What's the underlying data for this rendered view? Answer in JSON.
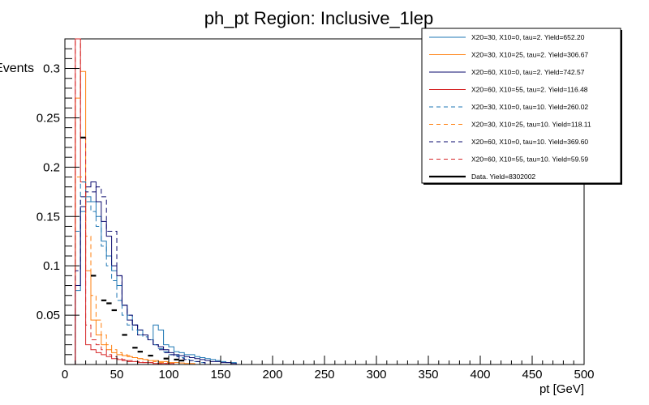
{
  "chart_data": {
    "type": "line",
    "title": "ph_pt Region: Inclusive_1lep",
    "xlabel": "pt [GeV]",
    "ylabel": "Events",
    "xlim": [
      0,
      500
    ],
    "ylim": [
      0,
      0.33
    ],
    "grid": false,
    "legend_position": "top-right",
    "x_ticks": [
      0,
      50,
      100,
      150,
      200,
      250,
      300,
      350,
      400,
      450,
      500
    ],
    "x_tick_labels": [
      "0",
      "50",
      "100",
      "150",
      "200",
      "250",
      "300",
      "350",
      "400",
      "450",
      "500"
    ],
    "y_ticks": [
      0.05,
      0.1,
      0.15,
      0.2,
      0.25,
      0.3
    ],
    "y_tick_labels": [
      "0.05",
      "0.1",
      "0.15",
      "0.2",
      "0.25",
      "0.3"
    ],
    "bin_width": 5,
    "series": [
      {
        "name": "X20=30, X10=0, tau=2. Yield=652.20",
        "color": "#1f77b4",
        "dashed": false,
        "x": [
          5,
          10,
          15,
          20,
          25,
          30,
          35,
          40,
          45,
          50,
          55,
          60,
          65,
          70,
          75,
          80,
          85,
          90,
          95,
          100,
          105,
          110,
          115,
          120,
          125,
          130,
          135,
          140,
          145,
          150,
          155,
          160
        ],
        "y": [
          0.0,
          0.075,
          0.155,
          0.17,
          0.165,
          0.15,
          0.125,
          0.11,
          0.095,
          0.08,
          0.06,
          0.05,
          0.04,
          0.035,
          0.03,
          0.025,
          0.04,
          0.035,
          0.02,
          0.018,
          0.013,
          0.012,
          0.01,
          0.01,
          0.008,
          0.007,
          0.006,
          0.005,
          0.004,
          0.003,
          0.002,
          0.002
        ]
      },
      {
        "name": "X20=30, X10=25, tau=2. Yield=306.67",
        "color": "#ff7f0e",
        "dashed": false,
        "x": [
          5,
          10,
          15,
          20,
          25,
          30,
          35,
          40,
          45,
          50,
          55,
          60,
          65,
          70,
          75,
          80,
          85,
          90,
          95,
          100,
          105,
          110,
          115,
          120
        ],
        "y": [
          0.0,
          0.27,
          0.297,
          0.095,
          0.045,
          0.03,
          0.02,
          0.015,
          0.012,
          0.01,
          0.009,
          0.008,
          0.007,
          0.006,
          0.005,
          0.004,
          0.004,
          0.003,
          0.003,
          0.002,
          0.002,
          0.0015,
          0.001,
          0.001
        ]
      },
      {
        "name": "X20=60, X10=0, tau=2. Yield=742.57",
        "color": "#0a0a6e",
        "dashed": false,
        "x": [
          5,
          10,
          15,
          20,
          25,
          30,
          35,
          40,
          45,
          50,
          55,
          60,
          65,
          70,
          75,
          80,
          85,
          90,
          95,
          100,
          105,
          110,
          115,
          120,
          125,
          130,
          135,
          140,
          145,
          150,
          155,
          160
        ],
        "y": [
          0.0,
          0.08,
          0.16,
          0.18,
          0.185,
          0.165,
          0.145,
          0.13,
          0.1,
          0.09,
          0.06,
          0.045,
          0.04,
          0.03,
          0.03,
          0.025,
          0.02,
          0.018,
          0.015,
          0.012,
          0.01,
          0.009,
          0.008,
          0.007,
          0.006,
          0.005,
          0.004,
          0.003,
          0.003,
          0.002,
          0.002,
          0.001
        ]
      },
      {
        "name": "X20=60, X10=55, tau=2. Yield=116.48",
        "color": "#d62728",
        "dashed": false,
        "x": [
          5,
          10,
          15,
          20,
          25,
          30,
          35,
          40,
          45,
          50,
          55,
          60,
          65,
          70,
          75,
          80,
          85,
          90,
          95,
          100
        ],
        "y": [
          0.0,
          0.5,
          0.185,
          0.02,
          0.015,
          0.012,
          0.01,
          0.008,
          0.006,
          0.005,
          0.004,
          0.003,
          0.003,
          0.002,
          0.002,
          0.002,
          0.001,
          0.001,
          0.001,
          0.001
        ]
      },
      {
        "name": "X20=30, X10=0, tau=10. Yield=260.02",
        "color": "#1f77b4",
        "dashed": true,
        "x": [
          5,
          10,
          15,
          20,
          25,
          30,
          35,
          40,
          45,
          50,
          55,
          60,
          65,
          70,
          75,
          80,
          85,
          90,
          95,
          100,
          105,
          110,
          115,
          120,
          125,
          130
        ],
        "y": [
          0.0,
          0.135,
          0.185,
          0.165,
          0.155,
          0.14,
          0.12,
          0.1,
          0.085,
          0.065,
          0.05,
          0.04,
          0.035,
          0.03,
          0.028,
          0.025,
          0.02,
          0.016,
          0.013,
          0.01,
          0.009,
          0.007,
          0.005,
          0.004,
          0.003,
          0.002
        ]
      },
      {
        "name": "X20=30, X10=25, tau=10. Yield=118.11",
        "color": "#ff7f0e",
        "dashed": true,
        "x": [
          5,
          10,
          15,
          20,
          25,
          30,
          35,
          40,
          45,
          50,
          55,
          60,
          65,
          70,
          75,
          80,
          85,
          90,
          95,
          100
        ],
        "y": [
          0.0,
          0.19,
          0.19,
          0.13,
          0.07,
          0.045,
          0.03,
          0.02,
          0.015,
          0.012,
          0.01,
          0.009,
          0.007,
          0.006,
          0.005,
          0.004,
          0.003,
          0.002,
          0.002,
          0.001
        ]
      },
      {
        "name": "X20=60, X10=0, tau=10. Yield=369.60",
        "color": "#0a0a6e",
        "dashed": true,
        "x": [
          5,
          10,
          15,
          20,
          25,
          30,
          35,
          40,
          45,
          50,
          55,
          60,
          65,
          70,
          75,
          80,
          85,
          90,
          95,
          100,
          105,
          110,
          115,
          120,
          125,
          130
        ],
        "y": [
          0.0,
          0.095,
          0.17,
          0.175,
          0.175,
          0.18,
          0.17,
          0.135,
          0.135,
          0.09,
          0.06,
          0.05,
          0.04,
          0.035,
          0.03,
          0.025,
          0.02,
          0.015,
          0.012,
          0.01,
          0.008,
          0.006,
          0.005,
          0.004,
          0.003,
          0.002
        ]
      },
      {
        "name": "X20=60, X10=55, tau=10. Yield=59.59",
        "color": "#d62728",
        "dashed": true,
        "x": [
          5,
          10,
          15,
          20,
          25,
          30,
          35,
          40,
          45,
          50,
          55,
          60,
          65,
          70,
          75,
          80,
          85,
          90,
          95,
          100
        ],
        "y": [
          0.0,
          0.4,
          0.23,
          0.04,
          0.025,
          0.02,
          0.015,
          0.01,
          0.008,
          0.006,
          0.005,
          0.004,
          0.003,
          0.003,
          0.002,
          0.002,
          0.001,
          0.001,
          0.001,
          0.001
        ]
      }
    ],
    "data_points": {
      "name": "Data. Yield=8302002",
      "color": "#000000",
      "x": [
        15,
        25,
        35,
        40,
        45,
        55,
        65,
        70,
        80,
        95,
        105,
        110
      ],
      "y": [
        0.23,
        0.09,
        0.065,
        0.062,
        0.055,
        0.03,
        0.017,
        0.013,
        0.009,
        0.006,
        0.005,
        0.004
      ]
    }
  }
}
